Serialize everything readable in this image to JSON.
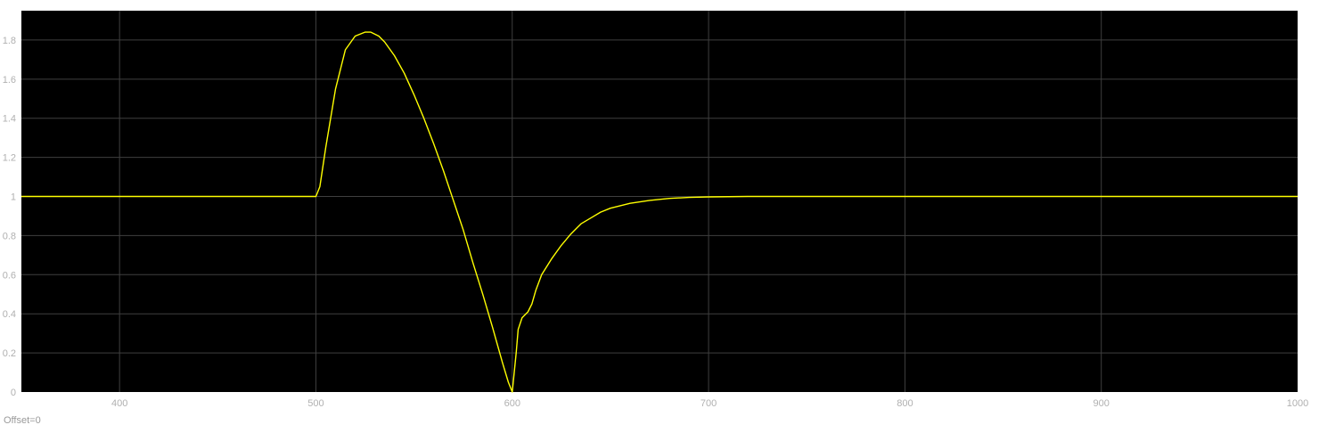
{
  "chart_data": {
    "type": "line",
    "title": "",
    "xlabel": "",
    "ylabel": "",
    "xlim": [
      350,
      1000
    ],
    "ylim": [
      0,
      1.95
    ],
    "grid": true,
    "x_ticks": [
      400,
      500,
      600,
      700,
      800,
      900,
      1000
    ],
    "y_ticks": [
      0,
      0.2,
      0.4,
      0.6,
      0.8,
      1,
      1.2,
      1.4,
      1.6,
      1.8
    ],
    "x_tick_labels": [
      "400",
      "500",
      "600",
      "700",
      "800",
      "900",
      "1000"
    ],
    "y_tick_labels": [
      "0",
      "0.2",
      "0.4",
      "0.6",
      "0.8",
      "1",
      "1.2",
      "1.4",
      "1.6",
      "1.8"
    ],
    "series": [
      {
        "color": "#ffff00",
        "x": [
          350,
          500,
          502,
          505,
          510,
          515,
          520,
          525,
          528,
          532,
          535,
          540,
          545,
          550,
          555,
          560,
          565,
          570,
          575,
          580,
          585,
          590,
          595,
          598,
          600,
          602,
          603,
          605,
          608,
          610,
          612,
          615,
          620,
          625,
          630,
          635,
          640,
          645,
          650,
          660,
          670,
          680,
          690,
          700,
          720,
          750,
          800,
          900,
          1000
        ],
        "y": [
          1.0,
          1.0,
          1.05,
          1.25,
          1.55,
          1.75,
          1.82,
          1.84,
          1.84,
          1.82,
          1.79,
          1.72,
          1.63,
          1.52,
          1.4,
          1.27,
          1.13,
          0.98,
          0.83,
          0.66,
          0.5,
          0.33,
          0.15,
          0.05,
          0.0,
          0.2,
          0.32,
          0.38,
          0.41,
          0.45,
          0.52,
          0.6,
          0.68,
          0.75,
          0.81,
          0.86,
          0.89,
          0.92,
          0.94,
          0.965,
          0.98,
          0.99,
          0.995,
          0.998,
          1.0,
          1.0,
          1.0,
          1.0,
          1.0
        ]
      }
    ],
    "colors": {
      "background": "#000000",
      "grid": "#3f3f3f",
      "axes_text": "#b0b0b0",
      "page_background": "#ffffff"
    }
  },
  "footer": {
    "offset_text": "Offset=0"
  }
}
